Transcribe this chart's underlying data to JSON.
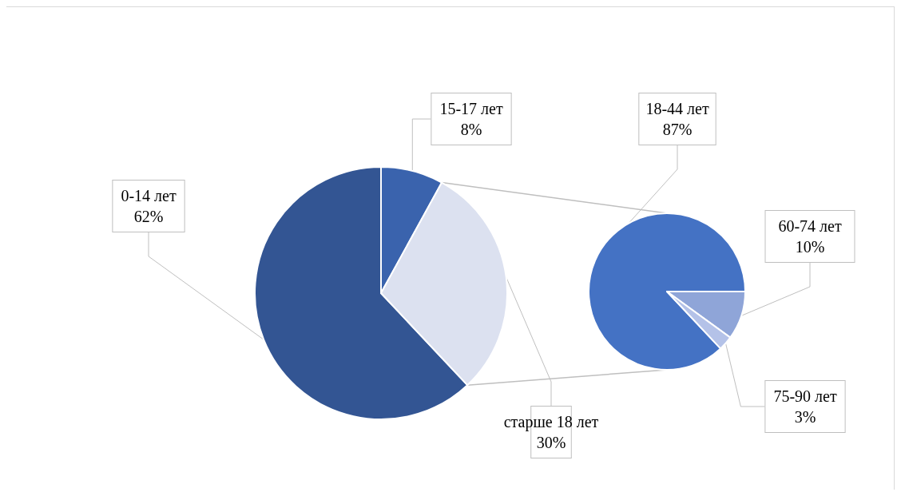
{
  "chart_data": [
    {
      "type": "pie",
      "categories": [
        "0-14 лет",
        "15-17 лет",
        "старше 18 лет"
      ],
      "values": [
        62,
        8,
        30
      ],
      "value_labels": [
        "62%",
        "8%",
        "30%"
      ],
      "colors": [
        "#335593",
        "#3a63ad",
        "#dce1f0"
      ]
    },
    {
      "type": "pie",
      "categories": [
        "18-44 лет",
        "60-74 лет",
        "75-90 лет"
      ],
      "values": [
        87,
        10,
        3
      ],
      "value_labels": [
        "87%",
        "10%",
        "3%"
      ],
      "colors": [
        "#4472c4",
        "#8fa5d8",
        "#b4c2e8"
      ]
    }
  ]
}
